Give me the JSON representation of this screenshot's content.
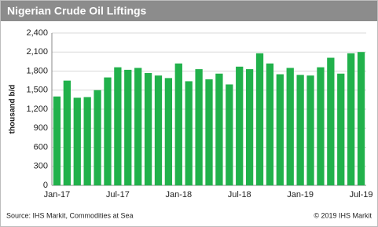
{
  "chart_data": {
    "type": "bar",
    "title": "Nigerian Crude Oil Liftings",
    "y_label": "thousand b/d",
    "categories": [
      "Jan-17",
      null,
      null,
      null,
      null,
      null,
      "Jul-17",
      null,
      null,
      null,
      null,
      null,
      "Jan-18",
      null,
      null,
      null,
      null,
      null,
      "Jul-18",
      null,
      null,
      null,
      null,
      null,
      "Jan-19",
      null,
      null,
      null,
      null,
      null,
      "Jul-19"
    ],
    "values": [
      1400,
      1650,
      1380,
      1390,
      1500,
      1700,
      1860,
      1820,
      1850,
      1770,
      1730,
      1690,
      1920,
      1640,
      1830,
      1670,
      1760,
      1590,
      1870,
      1830,
      2080,
      1920,
      1750,
      1850,
      1740,
      1730,
      1860,
      2010,
      1760,
      2080,
      2100
    ],
    "color": "#21b14b",
    "ylim": [
      0,
      2400
    ],
    "yticks": [
      0,
      300,
      600,
      900,
      {
        "value": 1200,
        "label": "1,200"
      },
      {
        "value": 1500,
        "label": "1,500"
      },
      {
        "value": 1800,
        "label": "1,800"
      },
      {
        "value": 2100,
        "label": "2,100"
      },
      {
        "value": 2400,
        "label": "2,400"
      }
    ],
    "grid": true,
    "source": "Source: IHS Markit, Commodities at Sea",
    "credit": "© 2019 IHS Markit"
  }
}
